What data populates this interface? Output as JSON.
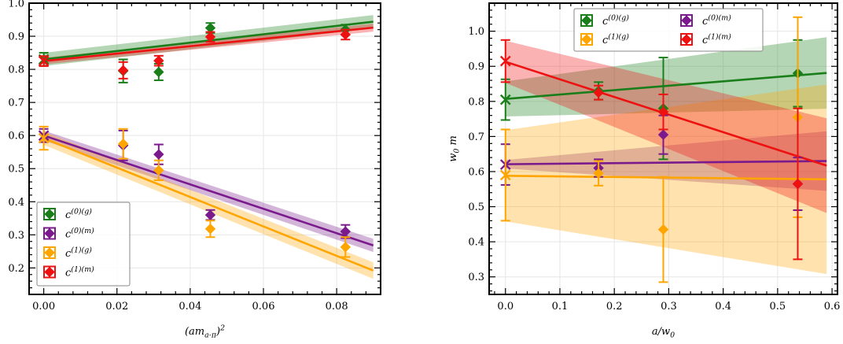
{
  "colors": {
    "c0g": "#1a7f1a",
    "c0m": "#7a1a8c",
    "c1g": "#ffa500",
    "c1m": "#ee1111",
    "grid": "#e6e6e6"
  },
  "chart_data": [
    {
      "type": "scatter",
      "xlabel": "(am_{a-π})^2",
      "ylabel": "",
      "xlim": [
        -0.004,
        0.092
      ],
      "ylim": [
        0.12,
        1.0
      ],
      "xticks": [
        "0.00",
        "0.02",
        "0.04",
        "0.06",
        "0.08"
      ],
      "xtick_values": [
        0.0,
        0.02,
        0.04,
        0.06,
        0.08
      ],
      "yticks": [
        "0.2",
        "0.3",
        "0.4",
        "0.5",
        "0.6",
        "0.7",
        "0.8",
        "0.9",
        "1.0"
      ],
      "ytick_values": [
        0.2,
        0.3,
        0.4,
        0.5,
        0.6,
        0.7,
        0.8,
        0.9,
        1.0
      ],
      "grid": true,
      "legend_position": "lower-left",
      "legend_columns": 1,
      "series": [
        {
          "key": "c0g",
          "name": "c^{(0)(g)}",
          "points": [
            {
              "x": 0.0217,
              "y": 0.795,
              "err": 0.035
            },
            {
              "x": 0.0314,
              "y": 0.792,
              "err": 0.025
            },
            {
              "x": 0.0455,
              "y": 0.925,
              "err": 0.015
            },
            {
              "x": 0.0824,
              "y": 0.92,
              "err": 0.015
            }
          ],
          "extrap": {
            "x": 0.0,
            "y": 0.83,
            "err": 0.02
          },
          "fit": {
            "x": [
              0.0,
              0.09
            ],
            "y": [
              0.83,
              0.944
            ],
            "band": [
              0.02,
              0.02
            ]
          }
        },
        {
          "key": "c0m",
          "name": "c^{(0)(m)}",
          "points": [
            {
              "x": 0.0217,
              "y": 0.57,
              "err": 0.045
            },
            {
              "x": 0.0314,
              "y": 0.543,
              "err": 0.03
            },
            {
              "x": 0.0455,
              "y": 0.36,
              "err": 0.015
            },
            {
              "x": 0.0824,
              "y": 0.31,
              "err": 0.02
            }
          ],
          "extrap": {
            "x": 0.0,
            "y": 0.6,
            "err": 0.02
          },
          "fit": {
            "x": [
              0.0,
              0.09
            ],
            "y": [
              0.6,
              0.268
            ],
            "band": [
              0.015,
              0.02
            ]
          }
        },
        {
          "key": "c1g",
          "name": "c^{(1)(g)}",
          "points": [
            {
              "x": 0.0217,
              "y": 0.575,
              "err": 0.045
            },
            {
              "x": 0.0314,
              "y": 0.495,
              "err": 0.03
            },
            {
              "x": 0.0455,
              "y": 0.318,
              "err": 0.025
            },
            {
              "x": 0.0824,
              "y": 0.263,
              "err": 0.03
            }
          ],
          "extrap": {
            "x": 0.0,
            "y": 0.592,
            "err": 0.035
          },
          "fit": {
            "x": [
              0.0,
              0.09
            ],
            "y": [
              0.592,
              0.192
            ],
            "band": [
              0.02,
              0.025
            ]
          }
        },
        {
          "key": "c1m",
          "name": "c^{(1)(m)}",
          "points": [
            {
              "x": 0.0217,
              "y": 0.797,
              "err": 0.025
            },
            {
              "x": 0.0314,
              "y": 0.826,
              "err": 0.015
            },
            {
              "x": 0.0455,
              "y": 0.898,
              "err": 0.015
            },
            {
              "x": 0.0824,
              "y": 0.905,
              "err": 0.015
            }
          ],
          "extrap": {
            "x": 0.0,
            "y": 0.825,
            "err": 0.015
          },
          "fit": {
            "x": [
              0.0,
              0.09
            ],
            "y": [
              0.825,
              0.926
            ],
            "band": [
              0.01,
              0.012
            ]
          }
        }
      ]
    },
    {
      "type": "scatter",
      "xlabel": "a/w_0",
      "ylabel": "w_0 m",
      "xlim": [
        -0.03,
        0.61
      ],
      "ylim": [
        0.25,
        1.08
      ],
      "xticks": [
        "0.0",
        "0.1",
        "0.2",
        "0.3",
        "0.4",
        "0.5",
        "0.6"
      ],
      "xtick_values": [
        0.0,
        0.1,
        0.2,
        0.3,
        0.4,
        0.5,
        0.6
      ],
      "yticks": [
        "0.3",
        "0.4",
        "0.5",
        "0.6",
        "0.7",
        "0.8",
        "0.9",
        "1.0"
      ],
      "ytick_values": [
        0.3,
        0.4,
        0.5,
        0.6,
        0.7,
        0.8,
        0.9,
        1.0
      ],
      "grid": true,
      "legend_position": "top-center",
      "legend_columns": 2,
      "series": [
        {
          "key": "c0g",
          "name": "c^{(0)(g)}",
          "points": [
            {
              "x": 0.171,
              "y": 0.83,
              "err": 0.025
            },
            {
              "x": 0.29,
              "y": 0.78,
              "err": 0.145
            },
            {
              "x": 0.537,
              "y": 0.88,
              "err": 0.095
            }
          ],
          "extrap": {
            "x": 0.0,
            "y": 0.805,
            "err": 0.058
          },
          "fit": {
            "x": [
              0.0,
              0.59
            ],
            "y": [
              0.807,
              0.881
            ],
            "band": [
              0.05,
              0.102
            ]
          }
        },
        {
          "key": "c0m",
          "name": "c^{(0)(m)}",
          "points": [
            {
              "x": 0.171,
              "y": 0.61,
              "err": 0.025
            },
            {
              "x": 0.29,
              "y": 0.705,
              "err": 0.055
            },
            {
              "x": 0.537,
              "y": 0.565,
              "err": 0.075
            }
          ],
          "extrap": {
            "x": 0.0,
            "y": 0.62,
            "err": 0.058
          },
          "fit": {
            "x": [
              0.0,
              0.59
            ],
            "y": [
              0.621,
              0.63
            ],
            "band": [
              0.012,
              0.085
            ]
          }
        },
        {
          "key": "c1g",
          "name": "c^{(1)(g)}",
          "points": [
            {
              "x": 0.171,
              "y": 0.595,
              "err": 0.035
            },
            {
              "x": 0.29,
              "y": 0.435,
              "err": 0.15
            },
            {
              "x": 0.537,
              "y": 0.755,
              "err": 0.285
            }
          ],
          "extrap": {
            "x": 0.0,
            "y": 0.59,
            "err": 0.13
          },
          "fit": {
            "x": [
              0.0,
              0.59
            ],
            "y": [
              0.588,
              0.578
            ],
            "band": [
              0.13,
              0.27
            ]
          }
        },
        {
          "key": "c1m",
          "name": "c^{(1)(m)}",
          "points": [
            {
              "x": 0.171,
              "y": 0.825,
              "err": 0.02
            },
            {
              "x": 0.29,
              "y": 0.77,
              "err": 0.05
            },
            {
              "x": 0.537,
              "y": 0.565,
              "err": 0.215
            }
          ],
          "extrap": {
            "x": 0.0,
            "y": 0.915,
            "err": 0.06
          },
          "fit": {
            "x": [
              0.0,
              0.59
            ],
            "y": [
              0.913,
              0.617
            ],
            "band": [
              0.06,
              0.135
            ]
          }
        }
      ]
    }
  ]
}
